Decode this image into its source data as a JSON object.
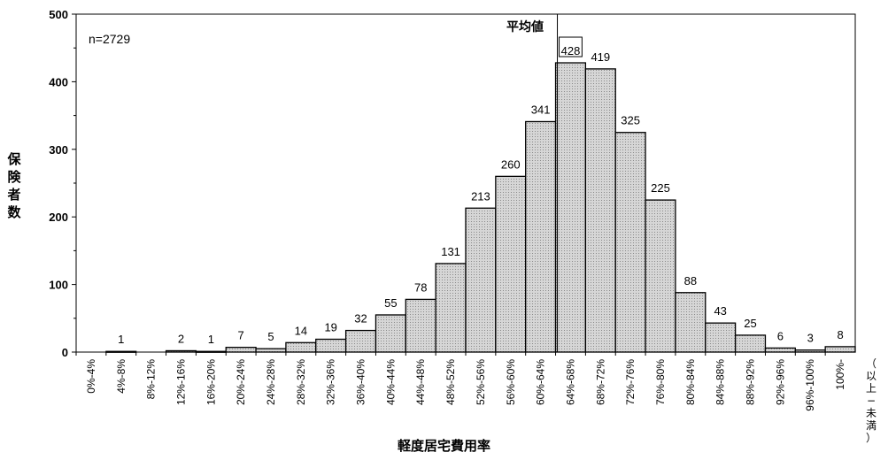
{
  "chart_data": {
    "type": "bar",
    "categories": [
      "0%-4%",
      "4%-8%",
      "8%-12%",
      "12%-16%",
      "16%-20%",
      "20%-24%",
      "24%-28%",
      "28%-32%",
      "32%-36%",
      "36%-40%",
      "40%-44%",
      "44%-48%",
      "48%-52%",
      "52%-56%",
      "56%-60%",
      "60%-64%",
      "64%-68%",
      "68%-72%",
      "72%-76%",
      "76%-80%",
      "80%-84%",
      "84%-88%",
      "88%-92%",
      "92%-96%",
      "96%-100%",
      "100%-"
    ],
    "values": [
      0,
      1,
      0,
      2,
      1,
      7,
      5,
      14,
      19,
      32,
      55,
      78,
      131,
      213,
      260,
      341,
      428,
      419,
      325,
      225,
      88,
      43,
      25,
      6,
      3,
      8
    ],
    "value_labels": [
      "",
      "1",
      "",
      "2",
      "1",
      "7",
      "5",
      "14",
      "19",
      "32",
      "55",
      "78",
      "131",
      "213",
      "260",
      "341",
      "428",
      "419",
      "325",
      "225",
      "88",
      "43",
      "25",
      "6",
      "3",
      "8"
    ],
    "title": "",
    "xlabel": "軽度居宅費用率",
    "ylabel": "保険者数",
    "ylim": [
      0,
      500
    ],
    "yticks": [
      "0",
      "100",
      "200",
      "300",
      "400",
      "500"
    ],
    "legend": null,
    "grid": false,
    "annotations": {
      "sample_size": "n=2729",
      "mean_label": "平均値",
      "mean_category": "64%-68%",
      "range_note": "（以上−未満）"
    }
  },
  "colors": {
    "bar_fill": "#d6d6d6",
    "bar_stroke": "#000000",
    "axis": "#000000"
  }
}
